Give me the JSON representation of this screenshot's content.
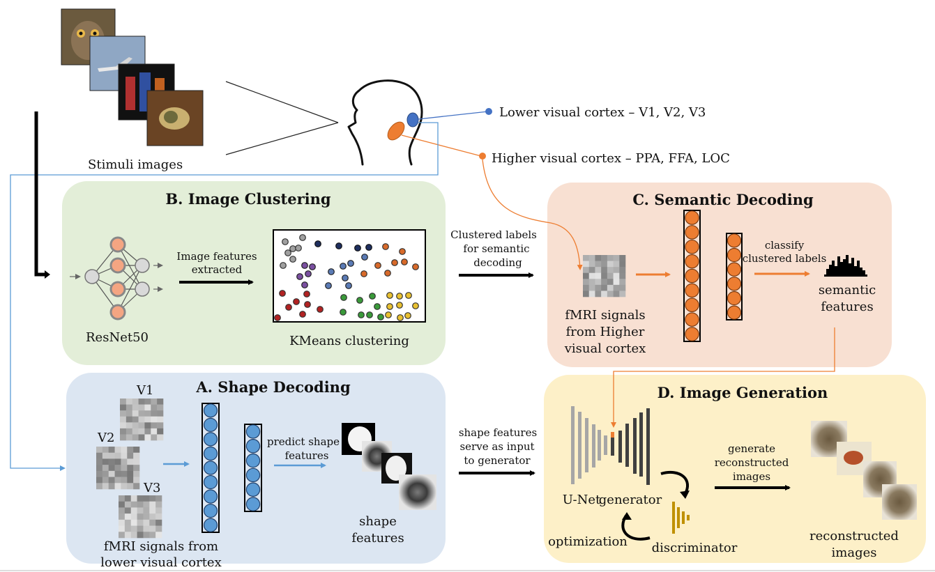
{
  "stimuli": {
    "label": "Stimuli images"
  },
  "cortex": {
    "lower": "Lower visual cortex – V1, V2, V3",
    "higher": "Higher visual cortex – PPA, FFA, LOC"
  },
  "panel_b": {
    "title": "B. Image Clustering",
    "network_label": "ResNet50",
    "arrow_label_1": "Image features",
    "arrow_label_2": "extracted",
    "clustering_label": "KMeans clustering"
  },
  "panel_c": {
    "title": "C. Semantic Decoding",
    "input_label_1": "Clustered labels",
    "input_label_2": "for semantic",
    "input_label_3": "decoding",
    "fmri_label_1": "fMRI signals",
    "fmri_label_2": "from Higher",
    "fmri_label_3": "visual cortex",
    "classify_1": "classify",
    "classify_2": "clustered labels",
    "output_1": "semantic",
    "output_2": "features"
  },
  "panel_a": {
    "title": "A. Shape Decoding",
    "v1": "V1",
    "v2": "V2",
    "v3": "V3",
    "predict_1": "predict shape",
    "predict_2": "features",
    "output_1": "shape",
    "output_2": "features",
    "fmri_1": "fMRI signals from",
    "fmri_2": "lower visual cortex"
  },
  "panel_d": {
    "title": "D. Image Generation",
    "input_1": "shape features",
    "input_2": "serve as input",
    "input_3": "to generator",
    "unet": "U-Net",
    "generator": "generator",
    "optimization": "optimization",
    "discriminator": "discriminator",
    "gen_1": "generate",
    "gen_2": "reconstructed",
    "gen_3": "images",
    "output_1": "reconstructed",
    "output_2": "images"
  },
  "colors": {
    "panel_b_bg": "#e3eed8",
    "panel_c_bg": "#f8e0d2",
    "panel_a_bg": "#dce6f2",
    "panel_d_bg": "#fdf0c8",
    "orange": "#ed7d31",
    "blue": "#5b9bd5",
    "lower_dot": "#4472c4",
    "gold": "#bf9000"
  }
}
